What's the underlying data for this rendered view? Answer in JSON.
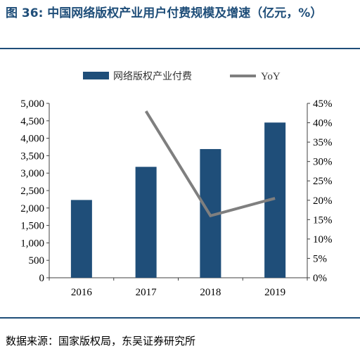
{
  "figure": {
    "title": "图 36:  中国网络版权产业用户付费规模及增速（亿元，%）",
    "source": "数据来源：国家版权局，东吴证券研究所"
  },
  "colors": {
    "bar": "#1f4e79",
    "line": "#7f7f7f",
    "title": "#1f4e79",
    "axis": "#404040"
  },
  "chart_data": {
    "type": "bar",
    "categories": [
      "2016",
      "2017",
      "2018",
      "2019"
    ],
    "series": [
      {
        "name": "网络版权产业付费",
        "type": "bar",
        "axis": "left",
        "values": [
          2230,
          3180,
          3690,
          4450
        ]
      },
      {
        "name": "YoY",
        "type": "line",
        "axis": "right",
        "values": [
          null,
          0.43,
          0.16,
          0.205
        ]
      }
    ],
    "yleft": {
      "lim": [
        0,
        5000
      ],
      "ticks": [
        0,
        500,
        1000,
        1500,
        2000,
        2500,
        3000,
        3500,
        4000,
        4500,
        5000
      ],
      "tick_labels": [
        "0",
        "500",
        "1,000",
        "1,500",
        "2,000",
        "2,500",
        "3,000",
        "3,500",
        "4,000",
        "4,500",
        "5,000"
      ]
    },
    "yright": {
      "lim": [
        0,
        0.45
      ],
      "ticks": [
        0,
        0.05,
        0.1,
        0.15,
        0.2,
        0.25,
        0.3,
        0.35,
        0.4,
        0.45
      ],
      "tick_labels": [
        "0%",
        "5%",
        "10%",
        "15%",
        "20%",
        "25%",
        "30%",
        "35%",
        "40%",
        "45%"
      ]
    },
    "legend_position": "top",
    "grid": false
  }
}
